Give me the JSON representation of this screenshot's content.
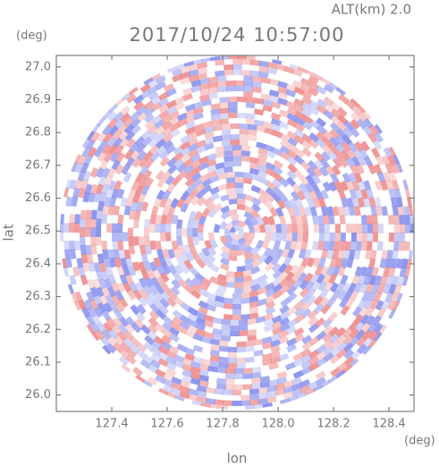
{
  "chart_data": {
    "type": "ppi",
    "title": "2017/10/24 10:57:00",
    "subtitle": "ALT(km) 2.0",
    "x_label": "lon",
    "y_label": "lat",
    "x_unit": "(deg)",
    "y_unit": "(deg)",
    "xlim": [
      127.2,
      128.49
    ],
    "ylim": [
      25.95,
      27.035
    ],
    "xticks": [
      127.4,
      127.6,
      127.8,
      {
        "value": 128.0,
        "label": "128.0"
      },
      128.2,
      128.4
    ],
    "yticks": [
      {
        "value": 26.0,
        "label": "26.0"
      },
      26.1,
      26.2,
      26.3,
      26.4,
      26.5,
      26.6,
      26.7,
      26.8,
      26.9,
      {
        "value": 27.0,
        "label": "27.0"
      }
    ]
  }
}
